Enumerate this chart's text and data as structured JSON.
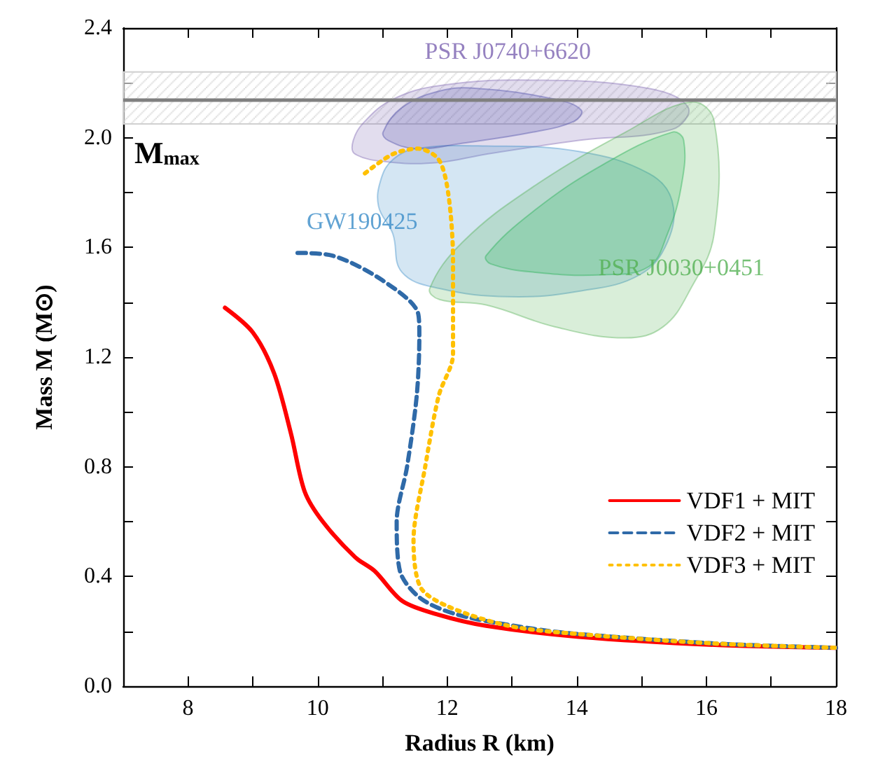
{
  "chart_data": {
    "type": "line",
    "xlabel": "Radius R (km)",
    "ylabel": "Mass M (M⊙)",
    "xlim": [
      7,
      18
    ],
    "xticks": [
      8,
      10,
      12,
      14,
      16,
      18
    ],
    "ylim": [
      0,
      2.4
    ],
    "yticks": [
      {
        "value": 0,
        "label": "0.0"
      },
      0.4,
      0.8,
      1.2,
      1.6,
      {
        "value": 2,
        "label": "2.0"
      },
      2.4
    ],
    "grid": false,
    "legend": "bottom right",
    "bands": [
      {
        "axis": "y",
        "from": 2.05,
        "to": 2.24,
        "color": "#d0d0d0"
      }
    ],
    "ref_lines": [
      {
        "axis": "y",
        "value": 2.14,
        "label": "M$_{max}$",
        "color": "#808080"
      }
    ],
    "series": [
      {
        "type": "area",
        "name": "PSR J0740+6620",
        "color": "#7a62b0",
        "x": [
          10.55,
          10.73,
          11.16,
          11.88,
          13.32,
          15.11,
          15.72,
          15.47,
          14.03,
          12.6,
          11.88,
          11.16,
          10.58
        ],
        "values": [
          1.99,
          2.06,
          2.14,
          2.19,
          2.21,
          2.18,
          2.11,
          2.03,
          1.99,
          1.94,
          1.91,
          1.91,
          1.94
        ]
      },
      {
        "type": "area",
        "name": "GW190425",
        "color": "#3a8cc8",
        "x": [
          11.16,
          11.52,
          12.6,
          14.03,
          15.11,
          15.47,
          15.4,
          14.97,
          14.03,
          12.96,
          11.88,
          11.3,
          11.16,
          10.94,
          10.98
        ],
        "values": [
          1.92,
          1.96,
          1.97,
          1.95,
          1.87,
          1.77,
          1.62,
          1.5,
          1.44,
          1.42,
          1.45,
          1.51,
          1.65,
          1.75,
          1.85
        ]
      },
      {
        "type": "area",
        "name": "PSR J0030+0451",
        "color": "#52b052",
        "x": [
          11.73,
          12.24,
          13.32,
          14.75,
          15.76,
          16.12,
          16.12,
          15.76,
          15.33,
          14.75,
          13.67,
          12.6,
          11.88
        ],
        "values": [
          1.45,
          1.62,
          1.82,
          2.02,
          2.13,
          2.06,
          1.65,
          1.45,
          1.31,
          1.27,
          1.31,
          1.39,
          1.41
        ]
      },
      {
        "type": "area",
        "color": "#4a4aa8",
        "x": [
          11.01,
          11.3,
          11.88,
          12.46,
          13.67,
          14.07,
          13.96,
          13.32,
          12.24,
          11.52,
          11.09
        ],
        "values": [
          2.02,
          2.11,
          2.17,
          2.18,
          2.14,
          2.1,
          2.06,
          2.02,
          1.98,
          1.96,
          1.99
        ]
      },
      {
        "type": "area",
        "color": "#20b050",
        "x": [
          12.6,
          13.32,
          14.39,
          15.47,
          15.65,
          15.61,
          15.4,
          15.11,
          14.39,
          13.32,
          12.67
        ],
        "values": [
          1.57,
          1.73,
          1.9,
          2.02,
          1.99,
          1.82,
          1.65,
          1.53,
          1.5,
          1.51,
          1.54
        ]
      },
      {
        "name": "VDF1 + MIT",
        "color": "#ff0000",
        "line_style": "solid",
        "x": [
          8.57,
          9.0,
          9.33,
          9.59,
          9.8,
          10.08,
          10.58,
          10.88,
          11.31,
          11.87,
          12.6,
          14.03,
          16.18,
          18
        ],
        "values": [
          1.38,
          1.29,
          1.14,
          0.92,
          0.71,
          0.6,
          0.47,
          0.42,
          0.31,
          0.26,
          0.22,
          0.18,
          0.15,
          0.14
        ]
      },
      {
        "name": "VDF2 + MIT",
        "color": "#2f6aa8",
        "line_style": "dashed",
        "x": [
          9.69,
          10.23,
          11.0,
          11.55,
          11.57,
          11.53,
          11.38,
          11.22,
          11.27,
          11.59,
          12.17,
          13.31,
          14.03,
          16.18,
          18
        ],
        "values": [
          1.58,
          1.57,
          1.48,
          1.36,
          1.28,
          1.06,
          0.8,
          0.6,
          0.42,
          0.32,
          0.26,
          0.21,
          0.19,
          0.155,
          0.14
        ]
      },
      {
        "name": "VDF3 + MIT",
        "color": "#ffc000",
        "line_style": "dotted",
        "x": [
          10.73,
          11.16,
          11.55,
          11.87,
          12.02,
          12.09,
          12.09,
          11.87,
          11.66,
          11.48,
          11.59,
          12.02,
          12.95,
          14.03,
          16.18,
          18
        ],
        "values": [
          1.87,
          1.94,
          1.96,
          1.92,
          1.79,
          1.55,
          1.21,
          1.06,
          0.8,
          0.53,
          0.36,
          0.29,
          0.22,
          0.19,
          0.155,
          0.14
        ]
      }
    ]
  }
}
